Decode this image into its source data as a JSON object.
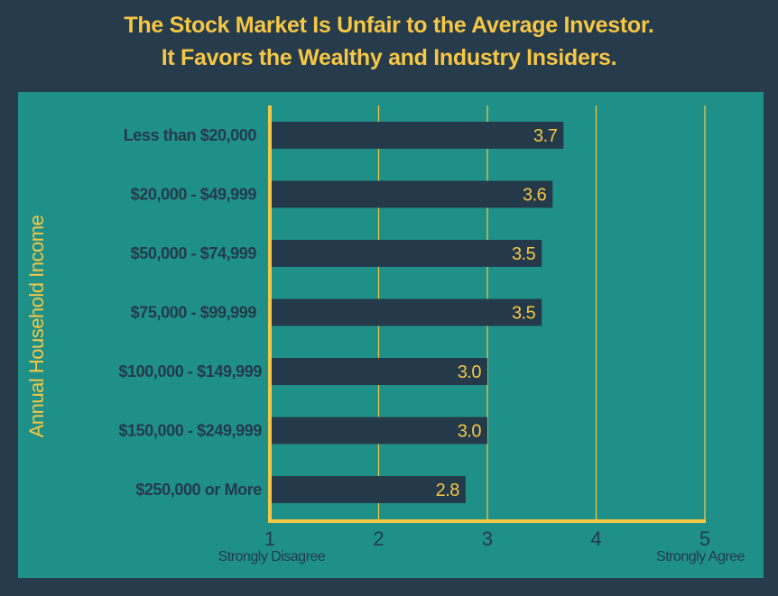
{
  "chart_data": {
    "type": "bar",
    "orientation": "horizontal",
    "title_lines": [
      "The Stock Market Is Unfair to the Average Investor.",
      "It Favors the Wealthy and Industry Insiders."
    ],
    "ylabel": "Annual Household Income",
    "xlabel": "",
    "categories": [
      "Less than $20,000",
      "$20,000 - $49,999",
      "$50,000 - $74,999",
      "$75,000 - $99,999",
      "$100,000 - $149,999",
      "$150,000 - $249,999",
      "$250,000 or More"
    ],
    "values": [
      3.7,
      3.6,
      3.5,
      3.5,
      3.0,
      3.0,
      2.8
    ],
    "value_labels": [
      "3.7",
      "3.6",
      "3.5",
      "3.5",
      "3.0",
      "3.0",
      "2.8"
    ],
    "xlim": [
      1,
      5
    ],
    "xticks": [
      "1",
      "2",
      "3",
      "4",
      "5"
    ],
    "x_end_labels": {
      "min": "Strongly Disagree",
      "max": "Strongly Agree"
    },
    "grid": true,
    "colors": {
      "background": "#263b4b",
      "panel": "#1f9088",
      "bar": "#243a4a",
      "accent": "#f6c744"
    }
  }
}
